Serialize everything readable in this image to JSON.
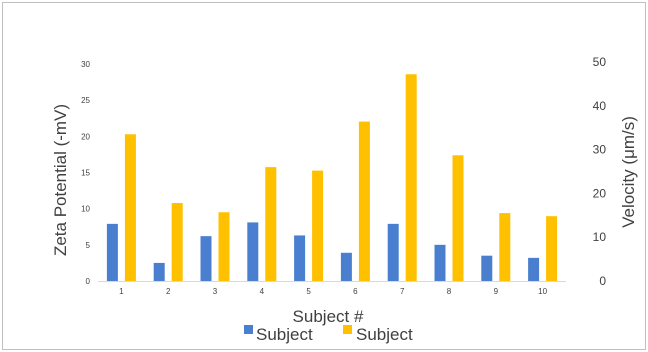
{
  "chart_data": {
    "type": "bar",
    "categories": [
      "1",
      "2",
      "3",
      "4",
      "5",
      "6",
      "7",
      "8",
      "9",
      "10"
    ],
    "series": [
      {
        "name": "Subject",
        "axis": "left",
        "color": "#4a7fd0",
        "values": [
          7.9,
          2.5,
          6.2,
          8.1,
          6.3,
          3.9,
          7.9,
          5.0,
          3.5,
          3.2
        ]
      },
      {
        "name": "Subject",
        "axis": "right",
        "color": "#ffc000",
        "values": [
          33.5,
          17.8,
          15.7,
          26.0,
          25.2,
          36.4,
          47.2,
          28.7,
          15.5,
          14.8
        ]
      }
    ],
    "xlabel": "Subject #",
    "ylabel": "Zeta Potential (-mV)",
    "y2label": "Velocity (μm/s)",
    "ylim": [
      0,
      30
    ],
    "y2lim": [
      0,
      50
    ],
    "yticks": [
      "0",
      "5",
      "10",
      "15",
      "20",
      "25",
      "30"
    ],
    "y2ticks": [
      "0",
      "10",
      "20",
      "30",
      "40",
      "50"
    ],
    "grid": false,
    "legend_position": "bottom"
  }
}
